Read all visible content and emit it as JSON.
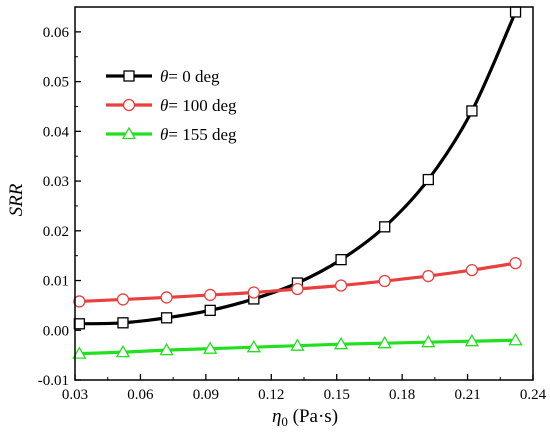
{
  "chart_data": {
    "type": "line",
    "xlabel_symbol": "η",
    "xlabel_subscript": "0",
    "xlabel_unit": " (Pa·s)",
    "ylabel": "SRR",
    "xlim": [
      0.03,
      0.24
    ],
    "ylim": [
      -0.01,
      0.065
    ],
    "x_ticks": [
      0.03,
      0.06,
      0.09,
      0.12,
      0.15,
      0.18,
      0.21,
      0.24
    ],
    "x_tick_labels": [
      "0.03",
      "0.06",
      "0.09",
      "0.12",
      "0.15",
      "0.18",
      "0.21",
      "0.24"
    ],
    "y_ticks": [
      -0.01,
      0.0,
      0.01,
      0.02,
      0.03,
      0.04,
      0.05,
      0.06
    ],
    "y_tick_labels": [
      "-0.01",
      "0.00",
      "0.01",
      "0.02",
      "0.03",
      "0.04",
      "0.05",
      "0.06"
    ],
    "legend_position": "top-left",
    "x": [
      0.032,
      0.052,
      0.072,
      0.092,
      0.112,
      0.132,
      0.152,
      0.172,
      0.192,
      0.212,
      0.232
    ],
    "series": [
      {
        "name": "θ= 0 deg",
        "name_symbol": "θ",
        "name_rest": "= 0 deg",
        "marker": "square",
        "color": "#000000",
        "values": [
          0.0013,
          0.0015,
          0.0025,
          0.004,
          0.0063,
          0.0095,
          0.0142,
          0.0208,
          0.0303,
          0.0441,
          0.064
        ]
      },
      {
        "name": "θ= 100 deg",
        "name_symbol": "θ",
        "name_rest": "= 100 deg",
        "marker": "circle",
        "color": "#e8403f",
        "values": [
          0.0058,
          0.0062,
          0.0066,
          0.0071,
          0.0076,
          0.0083,
          0.009,
          0.0099,
          0.0109,
          0.0121,
          0.0135
        ]
      },
      {
        "name": "θ= 155 deg",
        "name_symbol": "θ",
        "name_rest": "= 155 deg",
        "marker": "triangle",
        "color": "#22e01f",
        "values": [
          -0.0047,
          -0.0044,
          -0.004,
          -0.0037,
          -0.0034,
          -0.0031,
          -0.0028,
          -0.0026,
          -0.0024,
          -0.0022,
          -0.002
        ]
      }
    ]
  }
}
